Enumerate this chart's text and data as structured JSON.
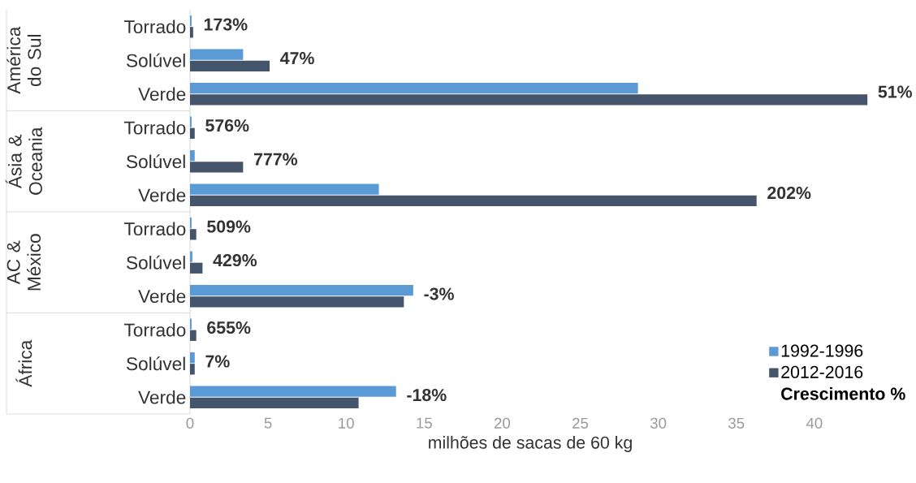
{
  "chart_data": {
    "type": "bar",
    "orientation": "horizontal",
    "categories": [
      "Torrado",
      "Solúvel",
      "Verde",
      "Torrado",
      "Solúvel",
      "Verde",
      "Torrado",
      "Solúvel",
      "Verde",
      "Torrado",
      "Solúvel",
      "Verde"
    ],
    "series": [
      {
        "name": "1992-1996",
        "color": "#5b9bd5",
        "values": [
          0.1,
          3.4,
          28.7,
          0.1,
          0.3,
          12.1,
          0.1,
          0.15,
          14.3,
          0.1,
          0.3,
          13.2
        ]
      },
      {
        "name": "2012-2016",
        "color": "#44546a",
        "values": [
          0.2,
          5.1,
          43.4,
          0.3,
          3.4,
          36.3,
          0.4,
          0.8,
          13.7,
          0.4,
          0.3,
          10.8
        ]
      }
    ],
    "xlim": [
      0,
      43.6
    ],
    "xticks": [
      0,
      5,
      10,
      15,
      20,
      25,
      30,
      35,
      40
    ],
    "xlabel": "milhões de sacas de 60 kg",
    "annotations": [
      "América do Sul",
      "Ásia & Oceania",
      "AC & México",
      "África",
      "Crescimento %",
      "173%",
      "47%",
      "51%",
      "576%",
      "777%",
      "202%",
      "509%",
      "429%",
      "-3%",
      "655%",
      "7%",
      "-18%"
    ],
    "legend": "bottom right"
  }
}
